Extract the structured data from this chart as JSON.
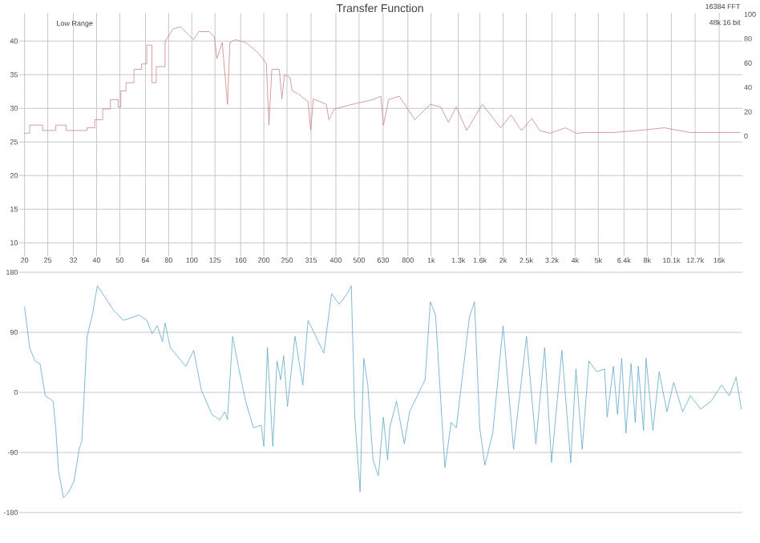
{
  "chart_data": [
    {
      "type": "line",
      "title": "Transfer Function",
      "annotations": [
        "Low Range",
        "16384 FFT",
        "48k 16 bit"
      ],
      "log": "x",
      "grid": true,
      "xlim": [
        19,
        20000
      ],
      "xticks": [
        20,
        25,
        32,
        40,
        50,
        64,
        80,
        100,
        125,
        160,
        200,
        250,
        315,
        400,
        500,
        630,
        800,
        {
          "value": 1000,
          "label": "1k"
        },
        {
          "value": 1300,
          "label": "1.3k"
        },
        {
          "value": 1600,
          "label": "1.6k"
        },
        {
          "value": 2000,
          "label": "2k"
        },
        {
          "value": 2500,
          "label": "2.5k"
        },
        {
          "value": 3200,
          "label": "3.2k"
        },
        {
          "value": 4000,
          "label": "4k"
        },
        {
          "value": 5000,
          "label": "5k"
        },
        {
          "value": 6400,
          "label": "6.4k"
        },
        {
          "value": 8000,
          "label": "8k"
        },
        {
          "value": 10100,
          "label": "10.1k"
        },
        {
          "value": 12700,
          "label": "12.7k"
        },
        {
          "value": 16000,
          "label": "16k"
        }
      ],
      "ylim": [
        8,
        44.2
      ],
      "yticks": [
        10,
        15,
        20,
        25,
        30,
        35,
        40
      ],
      "y2lim": [
        -98.7,
        101.3
      ],
      "y2ticks": [
        0,
        20,
        40,
        60,
        80,
        100
      ],
      "series": [
        {
          "color": "#c98585",
          "x": [
            20,
            21,
            21,
            23.8,
            23.8,
            27,
            27,
            29.8,
            29.8,
            36.5,
            36.5,
            39.3,
            39.3,
            42.4,
            42.4,
            45.7,
            45.7,
            49.2,
            49.2,
            50.5,
            50.5,
            53.1,
            53.1,
            57.3,
            57.3,
            61.7,
            61.7,
            64.8,
            64.8,
            68.1,
            68.1,
            71,
            71,
            77.3,
            77.3,
            83.4,
            89.8,
            101.7,
            106.9,
            118.2,
            124.2,
            127.4,
            134,
            141,
            144.3,
            152,
            168,
            190,
            205,
            210,
            216,
            232,
            238,
            244,
            257,
            263,
            277,
            306,
            314,
            322,
            365,
            374,
            394,
            469,
            573,
            617,
            632,
            665,
            736,
            855,
            993,
            1097,
            1183,
            1274,
            1409,
            1637,
            1955,
            2158,
            2384,
            2636,
            2845,
            3142,
            3650,
            4035,
            4458,
            5730,
            7362,
            9445,
            12130,
            19540
          ],
          "values": [
            26.3,
            26.3,
            27.5,
            27.5,
            26.7,
            26.7,
            27.5,
            27.5,
            26.7,
            26.7,
            27.1,
            27.1,
            28.3,
            28.3,
            29.9,
            29.9,
            31.3,
            31.3,
            30.2,
            30.2,
            32.6,
            32.6,
            33.8,
            33.8,
            35.8,
            35.8,
            36.6,
            36.6,
            39.4,
            39.4,
            33.8,
            33.8,
            36.2,
            36.2,
            39.9,
            41.8,
            42.1,
            40.2,
            41.4,
            41.4,
            40.6,
            37.4,
            39.8,
            30.6,
            39.8,
            40.2,
            39.8,
            38.2,
            36.6,
            27.5,
            35.8,
            35.8,
            31.4,
            35.0,
            34.6,
            32.6,
            32.2,
            31.0,
            26.7,
            31.4,
            30.6,
            28.3,
            29.9,
            30.6,
            31.3,
            31.8,
            27.5,
            31.3,
            31.8,
            28.3,
            30.6,
            30.2,
            27.9,
            30.2,
            26.7,
            30.6,
            27.1,
            29.0,
            26.7,
            28.5,
            26.7,
            26.3,
            27.1,
            26.3,
            26.4,
            26.4,
            26.7,
            27.1,
            26.4,
            26.4
          ]
        }
      ]
    },
    {
      "type": "line",
      "log": "x",
      "grid": "y",
      "tick_labels": "y",
      "xlim": [
        19,
        20000
      ],
      "ylim": [
        -180,
        180
      ],
      "yticks": [
        -180,
        -90,
        0,
        90,
        180
      ],
      "series": [
        {
          "color": "#5ea8c9",
          "x": [
            20,
            21.0,
            22.1,
            23.2,
            24.4,
            26.3,
            27.0,
            27.7,
            29.1,
            30.6,
            32.2,
            33.8,
            34.7,
            36.5,
            38.4,
            40.3,
            42.4,
            44.6,
            46.9,
            51.8,
            60.2,
            64.9,
            68.2,
            71.7,
            75.4,
            77.3,
            81.3,
            94.4,
            101.8,
            109.7,
            121.3,
            130.7,
            137.4,
            140.9,
            148.1,
            155.7,
            167.8,
            181,
            195,
            200,
            207,
            218,
            227,
            235,
            242,
            251,
            270,
            291,
            306,
            330,
            356,
            384,
            413,
            446,
            464,
            480,
            505,
            523,
            544,
            572,
            602,
            632,
            658,
            672,
            717,
            773,
            813,
            944,
            993,
            1044,
            1142,
            1213,
            1275,
            1445,
            1519,
            1597,
            1679,
            1810,
            2000,
            2211,
            2505,
            2742,
            2985,
            3187,
            3522,
            3835,
            4031,
            4281,
            4569,
            4925,
            5310,
            5443,
            5780,
            6016,
            6263,
            6521,
            6852,
            7134,
            7348,
            7727,
            7921,
            8456,
            8981,
            9680,
            10330,
            11250,
            12130,
            13400,
            14810,
            16370,
            17650,
            18830,
            19800
          ],
          "values": [
            128,
            67,
            47,
            43,
            -5,
            -13,
            -53,
            -117,
            -158,
            -149,
            -133,
            -85,
            -73,
            84,
            116,
            160,
            148,
            136,
            124,
            108,
            116,
            108,
            88,
            100,
            76,
            104,
            67,
            39,
            63,
            3,
            -33,
            -41,
            -29,
            -41,
            84,
            43,
            -13,
            -53,
            -49,
            -81,
            67,
            -81,
            47,
            19,
            55,
            -21,
            84,
            11,
            108,
            84,
            59,
            148,
            132,
            148,
            160,
            -37,
            -149,
            51,
            11,
            -101,
            -125,
            -37,
            -101,
            -53,
            -13,
            -77,
            -29,
            19,
            136,
            116,
            -113,
            -45,
            -53,
            112,
            136,
            -53,
            -109,
            -61,
            100,
            -85,
            84,
            -77,
            67,
            -105,
            63,
            -105,
            35,
            -85,
            47,
            31,
            35,
            -37,
            39,
            -33,
            51,
            -61,
            43,
            -45,
            39,
            -57,
            51,
            -57,
            31,
            -29,
            15,
            -29,
            -5,
            -25,
            -13,
            11,
            -5,
            23,
            -25
          ]
        }
      ]
    }
  ]
}
